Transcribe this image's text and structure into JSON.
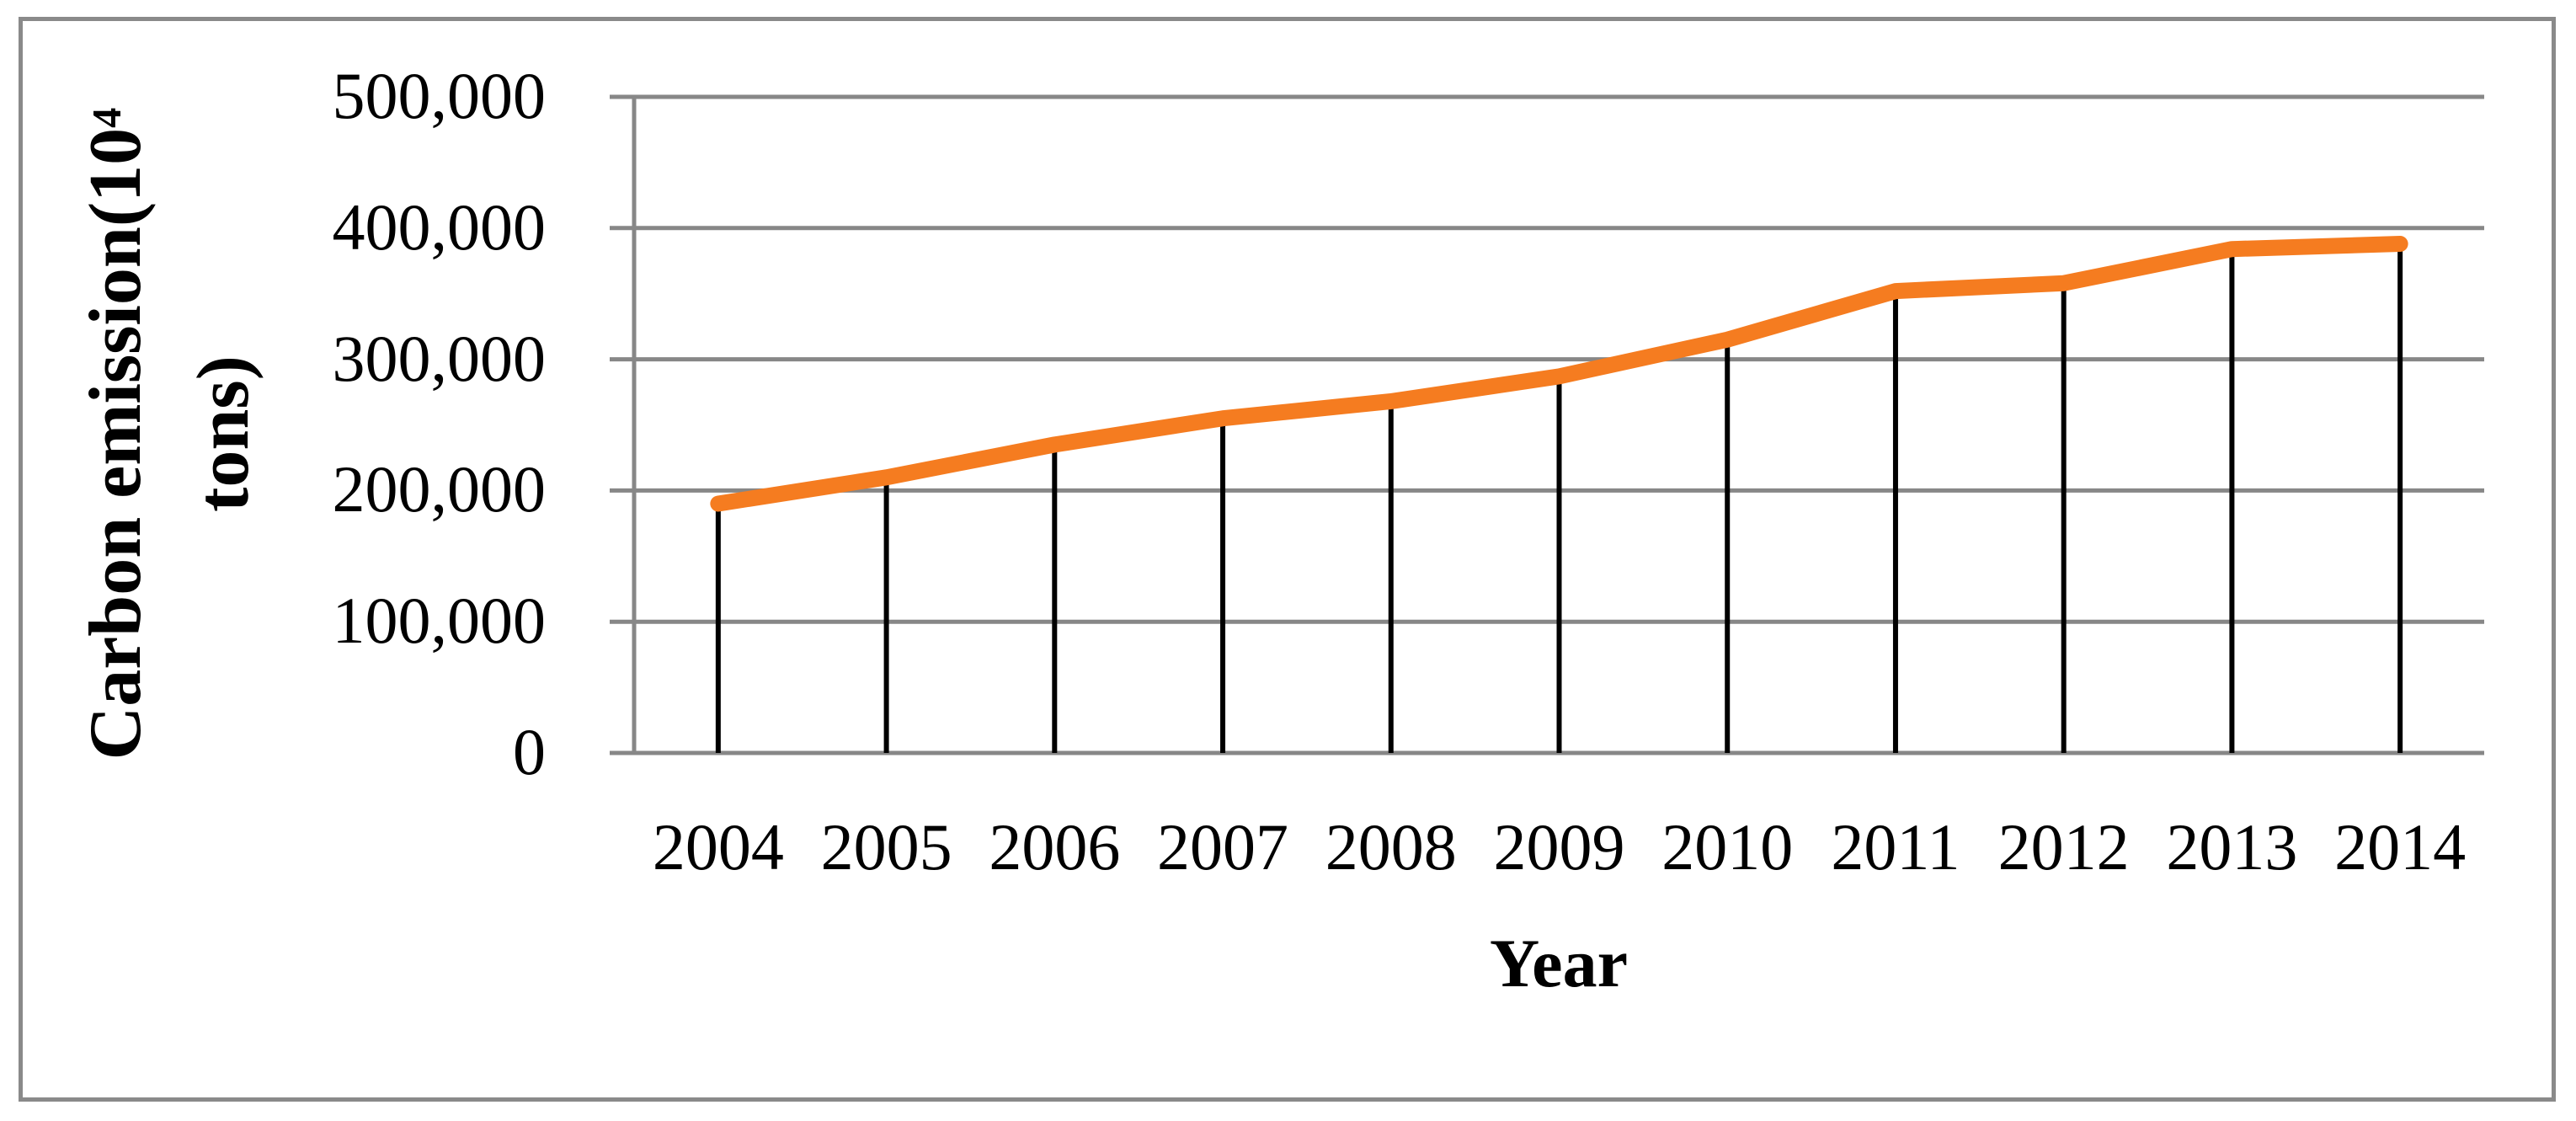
{
  "figure": {
    "background_color": "#ffffff",
    "border_color": "#8a8a8a"
  },
  "chart_data": {
    "type": "line",
    "title": "",
    "xlabel": "Year",
    "ylabel": "Carbon emission(10^4 tons)",
    "ylabel_line1_pre": "Carbon emission(10",
    "ylabel_sup": "4",
    "ylabel_line2": "tons)",
    "categories": [
      "2004",
      "2005",
      "2006",
      "2007",
      "2008",
      "2009",
      "2010",
      "2011",
      "2012",
      "2013",
      "2014"
    ],
    "series": [
      {
        "name": "Carbon emission",
        "values": [
          190000,
          210000,
          235000,
          255000,
          268000,
          287000,
          315000,
          352000,
          358000,
          384000,
          388000
        ]
      }
    ],
    "ylim": [
      0,
      500000
    ],
    "ytick_interval": 100000,
    "ytick_labels": [
      "0",
      "100,000",
      "200,000",
      "300,000",
      "400,000",
      "500,000"
    ],
    "grid": true,
    "legend": "none",
    "drop_lines": true,
    "line_color": "#F57C20",
    "gridline_color": "#878787",
    "axis_color": "#878787",
    "drop_line_color": "#000000",
    "text_color": "#000000"
  }
}
